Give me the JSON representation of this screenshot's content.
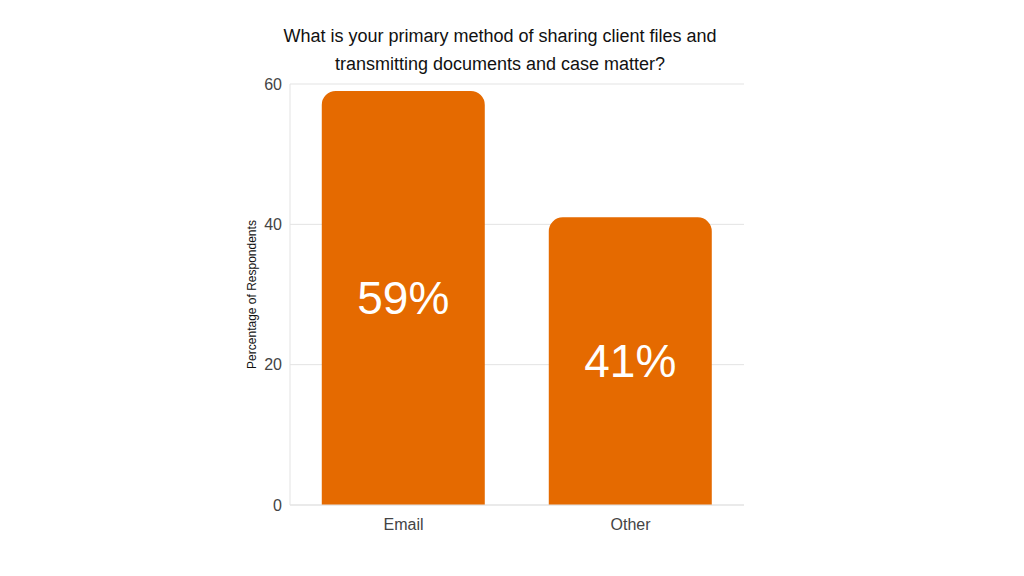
{
  "chart_data": {
    "type": "bar",
    "title": "What is your primary method of sharing client files and transmitting documents and case matter?",
    "y_label": "Percentage of Respondents",
    "categories": [
      "Email",
      "Other"
    ],
    "values": [
      59,
      41
    ],
    "value_labels": [
      "59%",
      "41%"
    ],
    "data_labels": true,
    "color": "#e56a00",
    "ylim": [
      0,
      60
    ],
    "yticks": [
      0,
      20,
      40,
      60
    ],
    "grid": true
  }
}
